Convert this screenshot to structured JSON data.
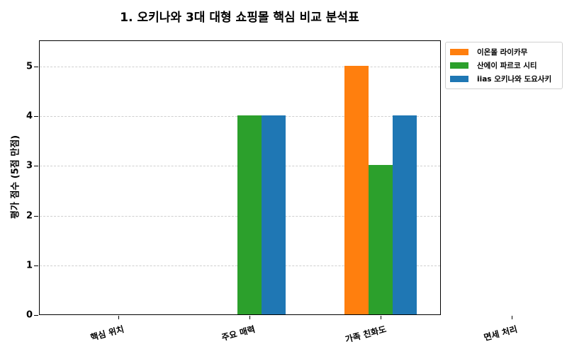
{
  "chart_data": {
    "type": "bar",
    "title": "1. 오키나와 3대 대형 쇼핑몰 핵심 비교 분석표",
    "xlabel": "",
    "ylabel": "평가 점수 (5점 만점)",
    "ylim": [
      0,
      5.5
    ],
    "yticks": [
      0,
      1,
      2,
      3,
      4,
      5
    ],
    "grid": true,
    "legend_position": "outside upper right",
    "categories": [
      "핵심 위치",
      "주요 매력",
      "가족 친화도",
      "면세 처리"
    ],
    "series": [
      {
        "name": "이온몰 라이카무",
        "color": "#ff7f0e",
        "values": [
          0,
          0,
          5,
          0
        ]
      },
      {
        "name": "산에이 파르코 시티",
        "color": "#2ca02c",
        "values": [
          0,
          4,
          3,
          0
        ]
      },
      {
        "name": "iias 오키나와 도요사키",
        "color": "#1f77b4",
        "values": [
          0,
          4,
          4,
          0
        ]
      }
    ]
  }
}
